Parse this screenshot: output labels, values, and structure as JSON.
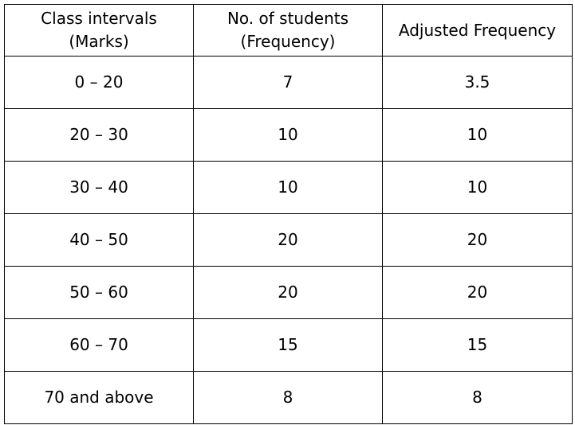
{
  "table": {
    "header": [
      [
        "Class intervals",
        "(Marks)"
      ],
      [
        "No. of students",
        "(Frequency)"
      ],
      [
        "Adjusted Frequency"
      ]
    ],
    "rows": [
      [
        "0 – 20",
        7,
        3.5
      ],
      [
        "20 – 30",
        10,
        10
      ],
      [
        "30 – 40",
        10,
        10
      ],
      [
        "40 – 50",
        20,
        20
      ],
      [
        "50 – 60",
        20,
        20
      ],
      [
        "60 – 70",
        15,
        15
      ],
      [
        "70 and above",
        8,
        8
      ]
    ]
  }
}
